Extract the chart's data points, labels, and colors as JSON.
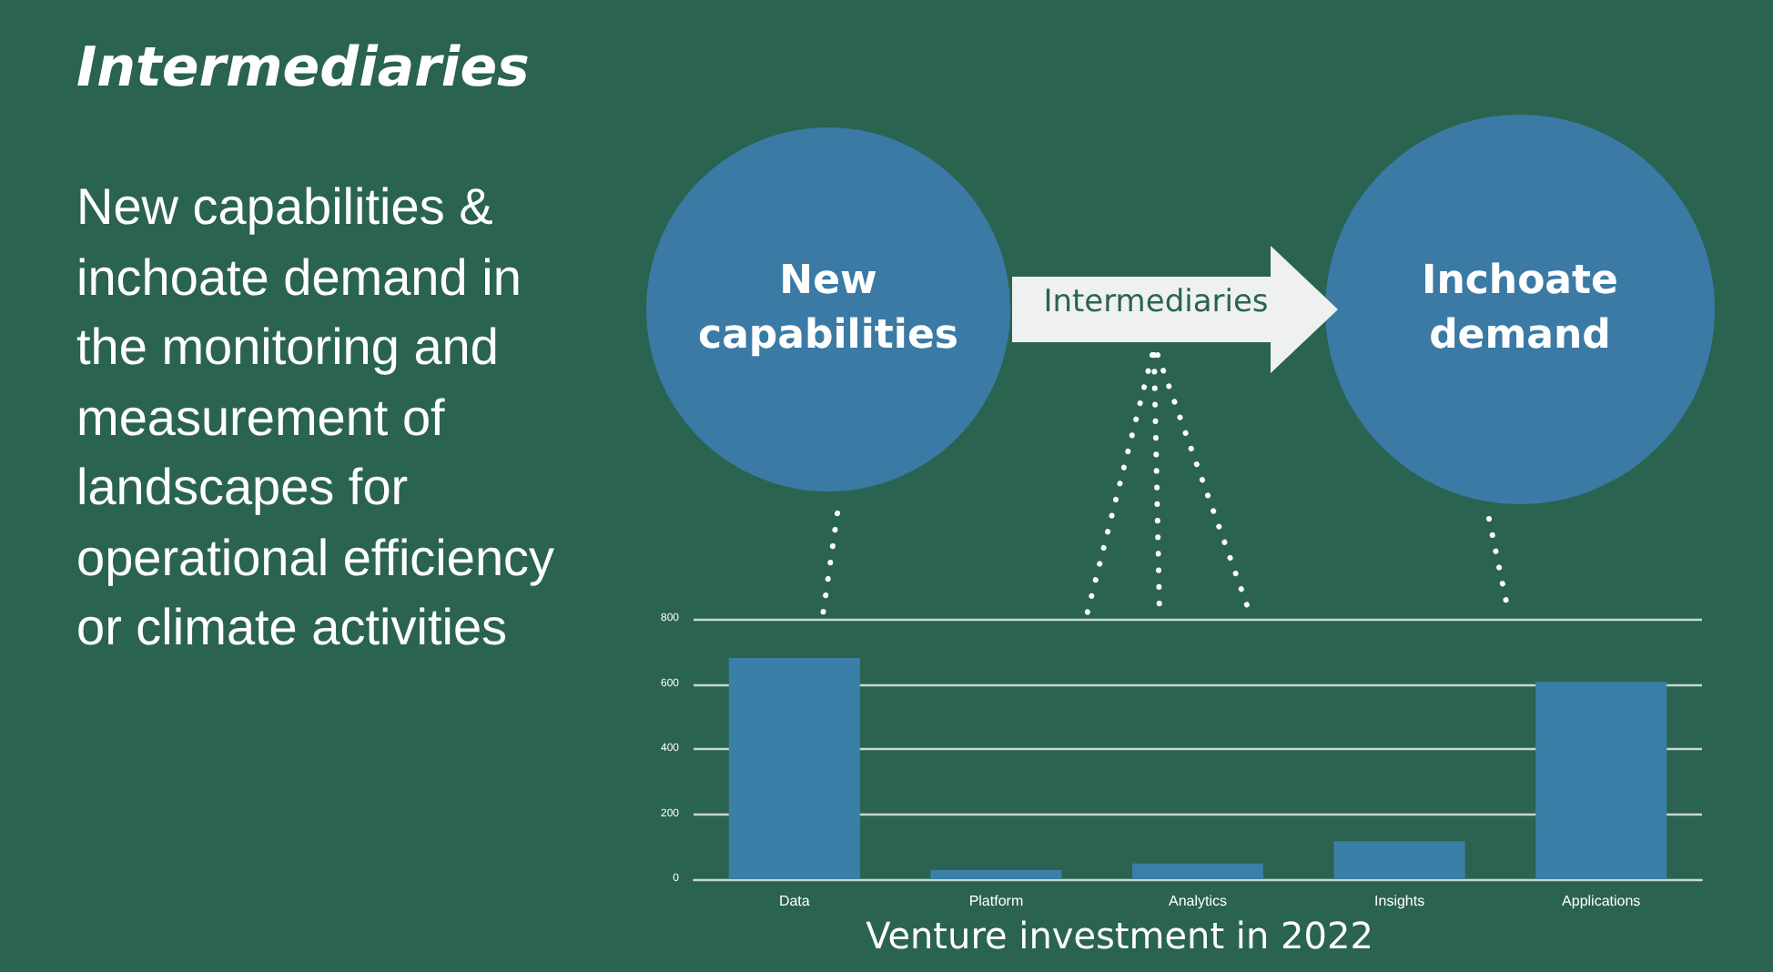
{
  "chart_data": {
    "type": "bar",
    "title": "Intermediaries",
    "xlabel": "Venture investment in 2022",
    "annotations": [
      "New capabilities & inchoate demand in the monitoring and measurement of landscapes for operational efficiency or climate activities",
      "New capabilities",
      "Inchoate demand",
      "Intermediaries"
    ],
    "categories": [
      "Data",
      "Platform",
      "Analytics",
      "Insights",
      "Applications"
    ],
    "values": [
      680,
      28,
      48,
      117,
      606
    ],
    "color": "#3a7fa8",
    "ylim": [
      0,
      800
    ],
    "yticks": [
      0,
      200,
      400,
      600,
      800
    ],
    "grid": "y"
  }
}
